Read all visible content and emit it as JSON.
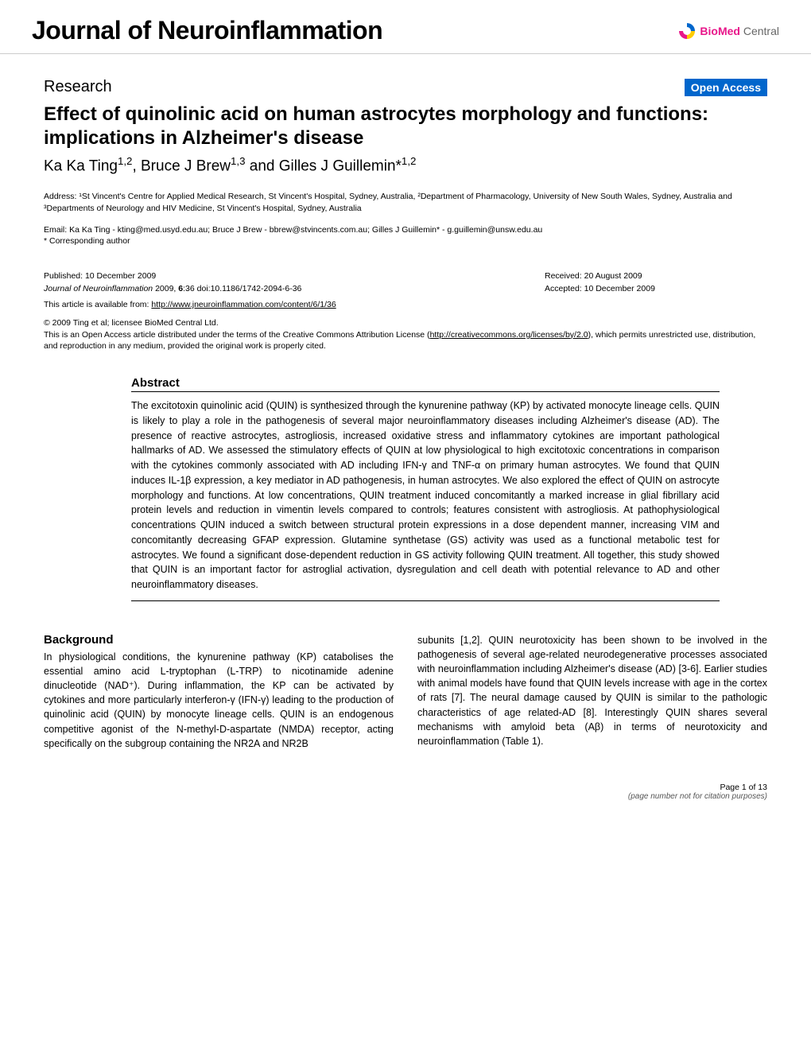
{
  "header": {
    "journal_title": "Journal of Neuroinflammation",
    "logo": {
      "bio": "BioMed",
      "central": " Central",
      "shape_colors": [
        "#e8178a",
        "#ffcc00",
        "#0066cc"
      ]
    }
  },
  "research_label": "Research",
  "open_access": "Open Access",
  "title": "Effect of quinolinic acid on human astrocytes morphology and functions: implications in Alzheimer's disease",
  "authors_html": "Ka Ka Ting<sup>1,2</sup>, Bruce J Brew<sup>1,3</sup> and Gilles J Guillemin*<sup>1,2</sup>",
  "address": "Address: ¹St Vincent's Centre for Applied Medical Research, St Vincent's Hospital, Sydney, Australia, ²Department of Pharmacology, University of New South Wales, Sydney, Australia and ³Departments of Neurology and HIV Medicine, St Vincent's Hospital, Sydney, Australia",
  "email": "Email: Ka Ka Ting - kting@med.usyd.edu.au; Bruce J Brew - bbrew@stvincents.com.au; Gilles J Guillemin* - g.guillemin@unsw.edu.au",
  "corresponding": "* Corresponding author",
  "meta": {
    "published": "Published: 10 December 2009",
    "received": "Received: 20 August 2009",
    "accepted": "Accepted: 10 December 2009",
    "citation_journal": "Journal of Neuroinflammation",
    "citation_year": " 2009, ",
    "citation_vol": "6",
    "citation_rest": ":36   doi:10.1186/1742-2094-6-36",
    "available_label": "This article is available from: ",
    "available_url": "http://www.jneuroinflammation.com/content/6/1/36",
    "copyright": "© 2009 Ting et al; licensee BioMed Central Ltd.",
    "license_text": "This is an Open Access article distributed under the terms of the Creative Commons Attribution License (",
    "license_url": "http://creativecommons.org/licenses/by/2.0",
    "license_tail": "), which permits unrestricted use, distribution, and reproduction in any medium, provided the original work is properly cited."
  },
  "abstract": {
    "heading": "Abstract",
    "body": "The excitotoxin quinolinic acid (QUIN) is synthesized through the kynurenine pathway (KP) by activated monocyte lineage cells. QUIN is likely to play a role in the pathogenesis of several major neuroinflammatory diseases including Alzheimer's disease (AD). The presence of reactive astrocytes, astrogliosis, increased oxidative stress and inflammatory cytokines are important pathological hallmarks of AD. We assessed the stimulatory effects of QUIN at low physiological to high excitotoxic concentrations in comparison with the cytokines commonly associated with AD including IFN-γ and TNF-α on primary human astrocytes. We found that QUIN induces IL-1β expression, a key mediator in AD pathogenesis, in human astrocytes. We also explored the effect of QUIN on astrocyte morphology and functions. At low concentrations, QUIN treatment induced concomitantly a marked increase in glial fibrillary acid protein levels and reduction in vimentin levels compared to controls; features consistent with astrogliosis. At pathophysiological concentrations QUIN induced a switch between structural protein expressions in a dose dependent manner, increasing VIM and concomitantly decreasing GFAP expression. Glutamine synthetase (GS) activity was used as a functional metabolic test for astrocytes. We found a significant dose-dependent reduction in GS activity following QUIN treatment. All together, this study showed that QUIN is an important factor for astroglial activation, dysregulation and cell death with potential relevance to AD and other neuroinflammatory diseases."
  },
  "background": {
    "heading": "Background",
    "col1": "In physiological conditions, the kynurenine pathway (KP) catabolises the essential amino acid L-tryptophan (L-TRP) to nicotinamide adenine dinucleotide (NAD⁺). During inflammation, the KP can be activated by cytokines and more particularly interferon-γ (IFN-γ) leading to the production of quinolinic acid (QUIN) by monocyte lineage cells. QUIN is an endogenous competitive agonist of the N-methyl-D-aspartate (NMDA) receptor, acting specifically on the subgroup containing the NR2A and NR2B",
    "col2": "subunits [1,2]. QUIN neurotoxicity has been shown to be involved in the pathogenesis of several age-related neurodegenerative processes associated with neuroinflammation including Alzheimer's disease (AD) [3-6]. Earlier studies with animal models have found that QUIN levels increase with age in the cortex of rats [7]. The neural damage caused by QUIN is similar to the pathologic characteristics of age related-AD [8]. Interestingly QUIN shares several mechanisms with amyloid beta (Aβ) in terms of neurotoxicity and neuroinflammation (Table 1)."
  },
  "footer": {
    "page": "Page 1 of 13",
    "note": "(page number not for citation purposes)"
  }
}
